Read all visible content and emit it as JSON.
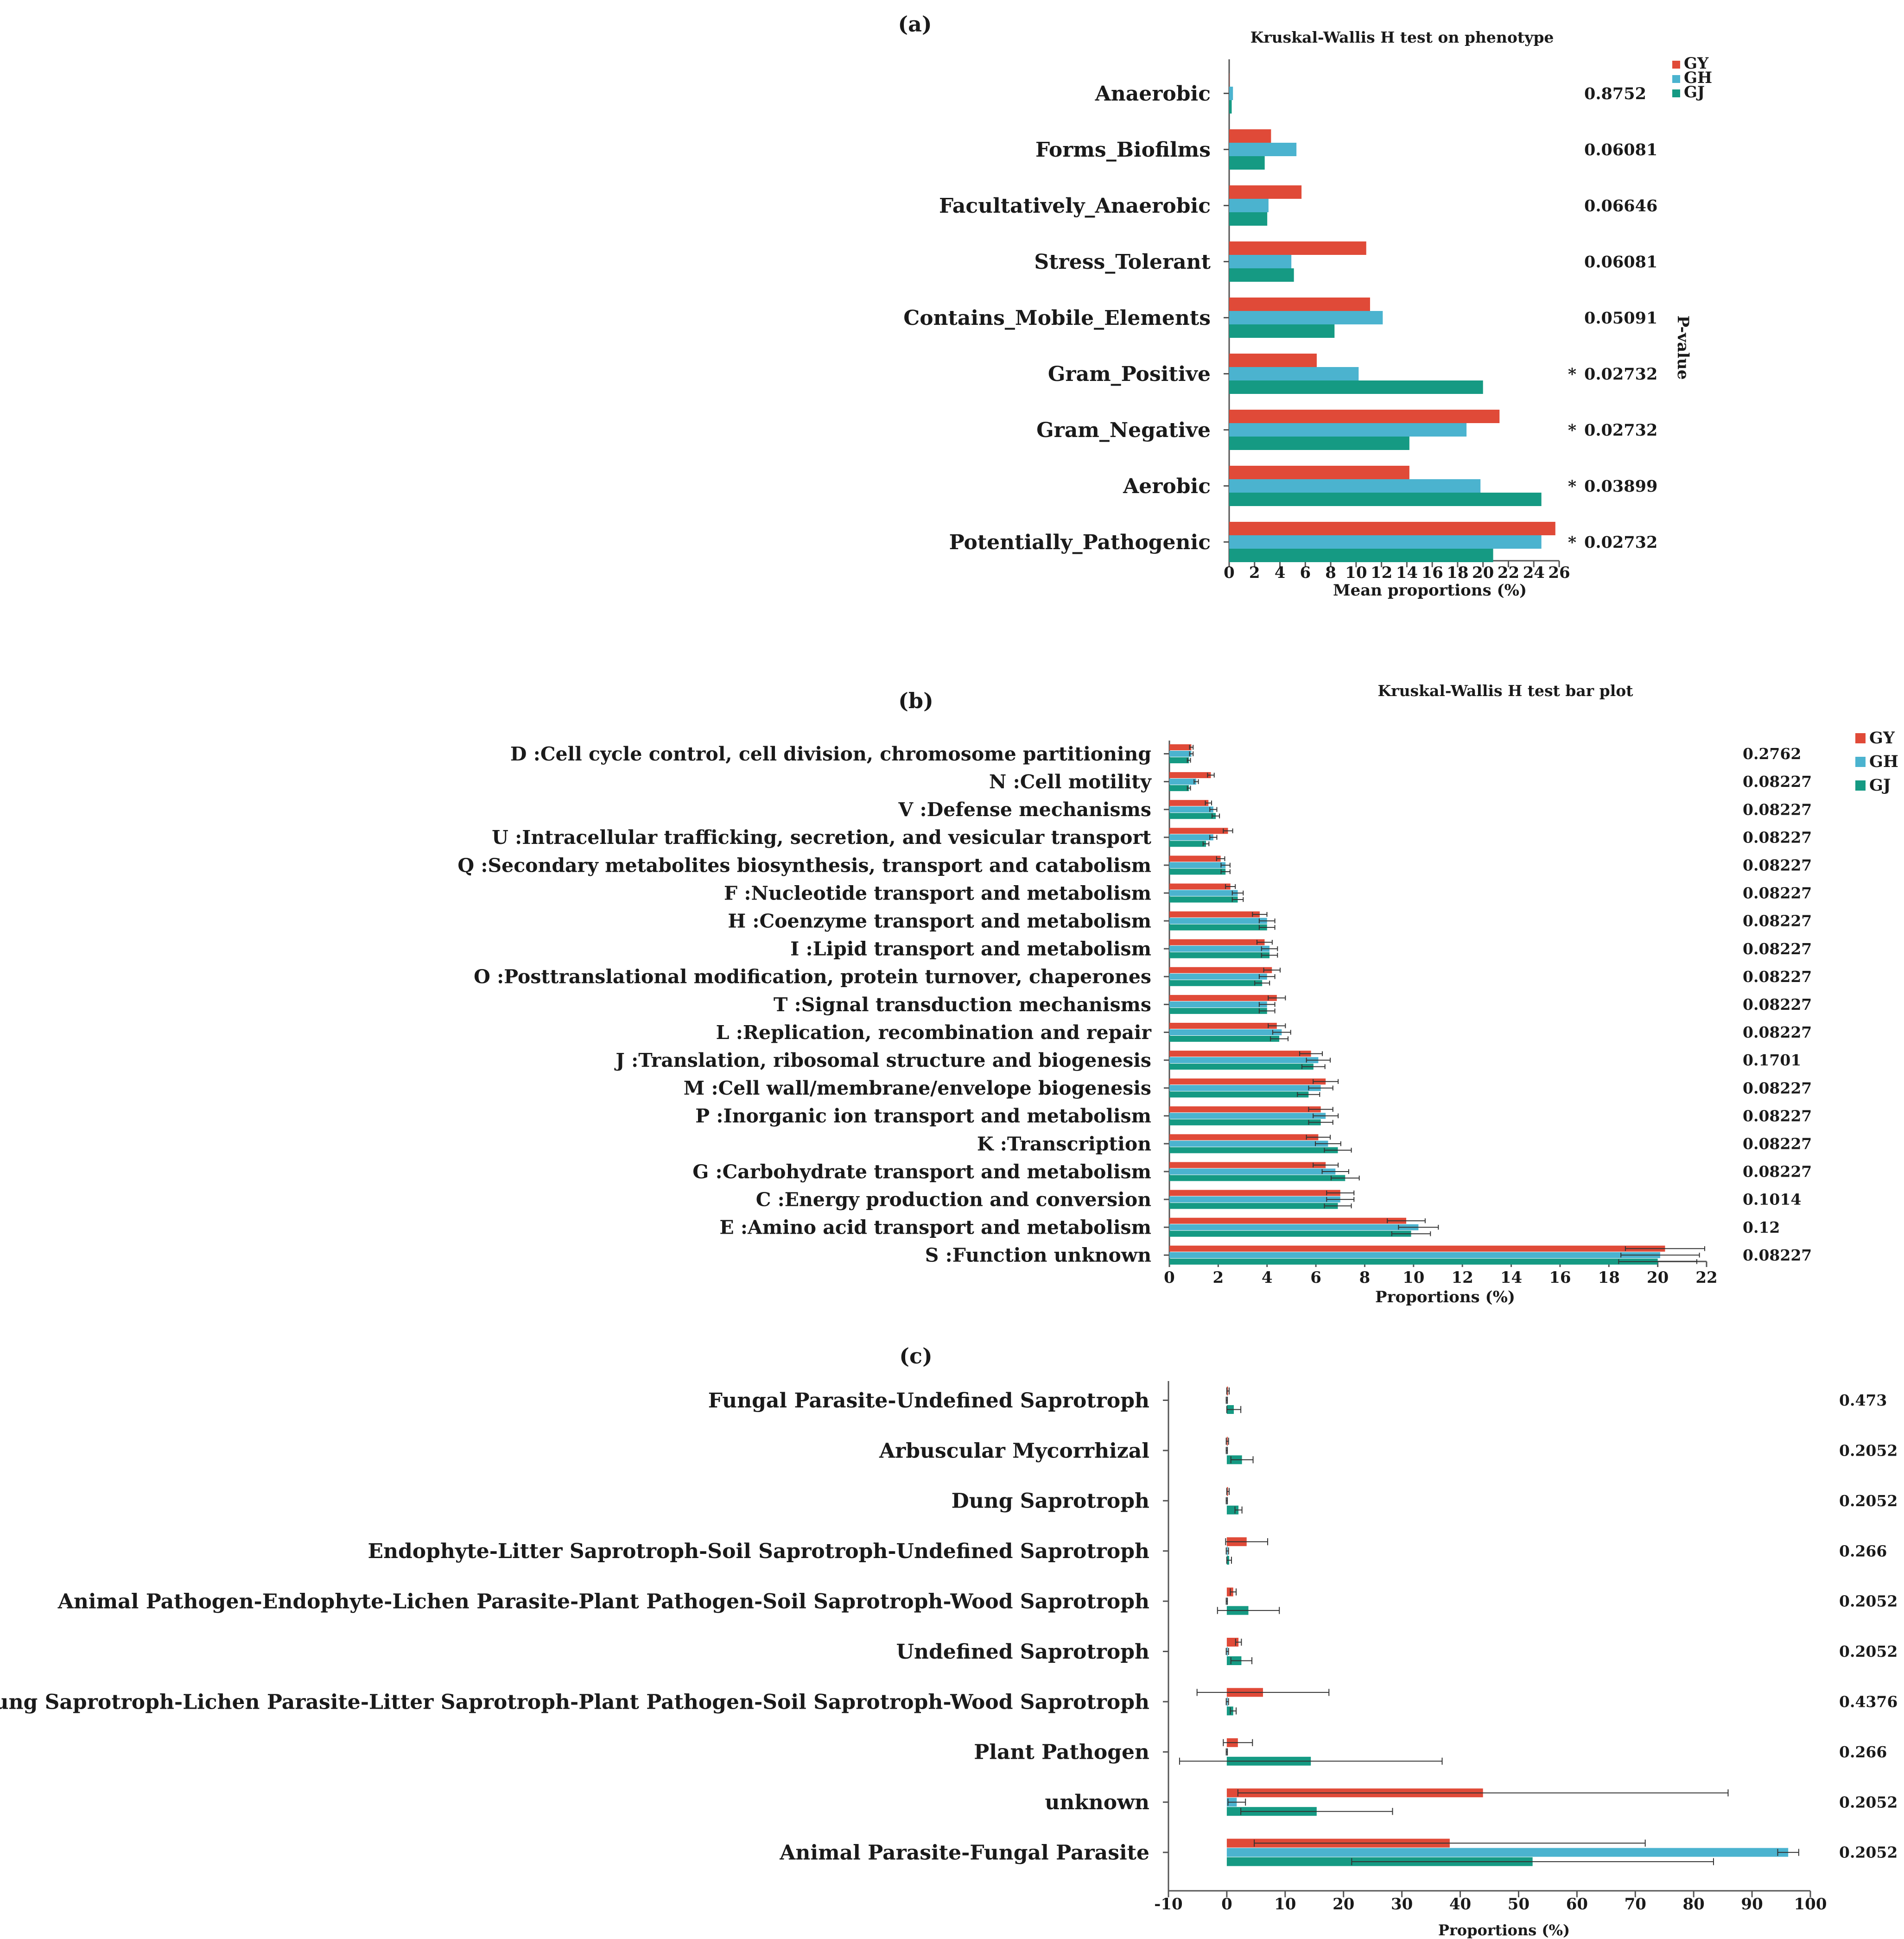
{
  "colors": {
    "GY": "#e04a38",
    "GH": "#4bb3cf",
    "GJ": "#159a83",
    "axis": "#555555",
    "err": "#333333"
  },
  "chart_data": [
    {
      "panel": "(a)",
      "type": "bar",
      "orientation": "horizontal",
      "title": "Kruskal-Wallis H test on phenotype",
      "xlabel": "Mean proportions (%)",
      "pvalue_label": "P-value",
      "xlim": [
        0,
        26
      ],
      "ticks": [
        0,
        2,
        4,
        6,
        8,
        10,
        12,
        14,
        16,
        18,
        20,
        22,
        24,
        26
      ],
      "legend": [
        "GY",
        "GH",
        "GJ"
      ],
      "legend_position": "top-right",
      "categories": [
        "Anaerobic",
        "Forms_Biofilms",
        "Facultatively_Anaerobic",
        "Stress_Tolerant",
        "Contains_Mobile_Elements",
        "Gram_Positive",
        "Gram_Negative",
        "Aerobic",
        "Potentially_Pathogenic"
      ],
      "series": [
        {
          "name": "GY",
          "values": [
            0,
            3.3,
            5.7,
            10.8,
            11.1,
            6.9,
            21.3,
            14.2,
            25.7
          ]
        },
        {
          "name": "GH",
          "values": [
            0.3,
            5.3,
            3.1,
            4.9,
            12.1,
            10.2,
            18.7,
            19.8,
            24.6
          ]
        },
        {
          "name": "GJ",
          "values": [
            0.2,
            2.8,
            3.0,
            5.1,
            8.3,
            20.0,
            14.2,
            24.6,
            20.8
          ]
        }
      ],
      "pvalues": [
        "0.8752",
        "0.06081",
        "0.06646",
        "0.06081",
        "0.05091",
        "0.02732",
        "0.02732",
        "0.03899",
        "0.02732"
      ],
      "significance": [
        "",
        "",
        "",
        "",
        "",
        "*",
        "*",
        "*",
        "*"
      ]
    },
    {
      "panel": "(b)",
      "type": "bar",
      "orientation": "horizontal",
      "title": "Kruskal-Wallis H test bar plot",
      "xlabel": "Proportions (%)",
      "xlim": [
        0,
        22
      ],
      "ticks": [
        0,
        2,
        4,
        6,
        8,
        10,
        12,
        14,
        16,
        18,
        20,
        22
      ],
      "legend": [
        "GY",
        "GH",
        "GJ"
      ],
      "legend_position": "top-right",
      "categories": [
        "D :Cell cycle control, cell division, chromosome partitioning",
        "N :Cell motility",
        "V :Defense mechanisms",
        "U :Intracellular trafficking, secretion, and vesicular transport",
        "Q :Secondary metabolites biosynthesis, transport and catabolism",
        "F :Nucleotide transport and metabolism",
        "H :Coenzyme transport and metabolism",
        "I :Lipid transport and metabolism",
        "O :Posttranslational modification, protein turnover, chaperones",
        "T :Signal transduction mechanisms",
        "L :Replication, recombination and repair",
        "J :Translation, ribosomal structure and biogenesis",
        "M :Cell wall/membrane/envelope biogenesis",
        "P :Inorganic ion transport and metabolism",
        "K :Transcription",
        "G :Carbohydrate transport and metabolism",
        "C :Energy production and conversion",
        "E :Amino acid transport and metabolism",
        "S :Function unknown"
      ],
      "series": [
        {
          "name": "GY",
          "values": [
            0.9,
            1.7,
            1.6,
            2.4,
            2.1,
            2.5,
            3.7,
            3.9,
            4.2,
            4.4,
            4.4,
            5.8,
            6.4,
            6.2,
            6.1,
            6.4,
            7.0,
            9.7,
            20.3
          ]
        },
        {
          "name": "GH",
          "values": [
            0.9,
            1.1,
            1.8,
            1.8,
            2.3,
            2.8,
            4.0,
            4.1,
            4.0,
            4.0,
            4.6,
            6.1,
            6.2,
            6.4,
            6.5,
            6.8,
            7.0,
            10.2,
            20.1
          ]
        },
        {
          "name": "GJ",
          "values": [
            0.8,
            0.8,
            1.9,
            1.5,
            2.3,
            2.8,
            4.0,
            4.1,
            3.8,
            4.0,
            4.5,
            5.9,
            5.7,
            6.2,
            6.9,
            7.2,
            6.9,
            9.9,
            20.0
          ]
        }
      ],
      "pvalues": [
        "0.2762",
        "0.08227",
        "0.08227",
        "0.08227",
        "0.08227",
        "0.08227",
        "0.08227",
        "0.08227",
        "0.08227",
        "0.08227",
        "0.08227",
        "0.1701",
        "0.08227",
        "0.08227",
        "0.08227",
        "0.08227",
        "0.1014",
        "0.12",
        "0.08227"
      ]
    },
    {
      "panel": "(c)",
      "type": "bar",
      "orientation": "horizontal",
      "title": "",
      "xlabel": "Proportions (%)",
      "xlim": [
        -10,
        100
      ],
      "ticks": [
        -10,
        0,
        10,
        20,
        30,
        40,
        50,
        60,
        70,
        80,
        90,
        100
      ],
      "legend": [],
      "categories": [
        "Fungal Parasite-Undefined Saprotroph",
        "Arbuscular Mycorrhizal",
        "Dung Saprotroph",
        "Endophyte-Litter Saprotroph-Soil Saprotroph-Undefined Saprotroph",
        "Animal Pathogen-Endophyte-Lichen Parasite-Plant Pathogen-Soil Saprotroph-Wood Saprotroph",
        "Undefined Saprotroph",
        "Endophyte-Dung Saprotroph-Lichen Parasite-Litter Saprotroph-Plant Pathogen-Soil Saprotroph-Wood Saprotroph",
        "Plant Pathogen",
        "unknown",
        "Animal Parasite-Fungal Parasite"
      ],
      "series": [
        {
          "name": "GY",
          "values": [
            0.2,
            0.1,
            0.2,
            3.4,
            1.1,
            2.0,
            6.2,
            1.9,
            43.9,
            38.2
          ],
          "errors": [
            0.2,
            0.2,
            0.2,
            3.6,
            0.5,
            0.5,
            11.3,
            2.5,
            42.0,
            33.5
          ]
        },
        {
          "name": "GH",
          "values": [
            0.0,
            0.0,
            0.0,
            0.1,
            0.0,
            0.1,
            0.1,
            0.0,
            1.7,
            96.2
          ],
          "errors": [
            0.1,
            0.1,
            0.1,
            0.2,
            0.1,
            0.2,
            0.2,
            0.1,
            1.5,
            1.8
          ]
        },
        {
          "name": "GJ",
          "values": [
            1.2,
            2.6,
            2.0,
            0.4,
            3.7,
            2.5,
            1.1,
            14.4,
            15.4,
            52.4
          ],
          "errors": [
            1.2,
            1.9,
            0.6,
            0.4,
            5.3,
            1.8,
            0.5,
            22.5,
            13.0,
            31.0
          ]
        }
      ],
      "pvalues": [
        "0.473",
        "0.2052",
        "0.2052",
        "0.266",
        "0.2052",
        "0.2052",
        "0.4376",
        "0.266",
        "0.2052",
        "0.2052"
      ]
    }
  ]
}
